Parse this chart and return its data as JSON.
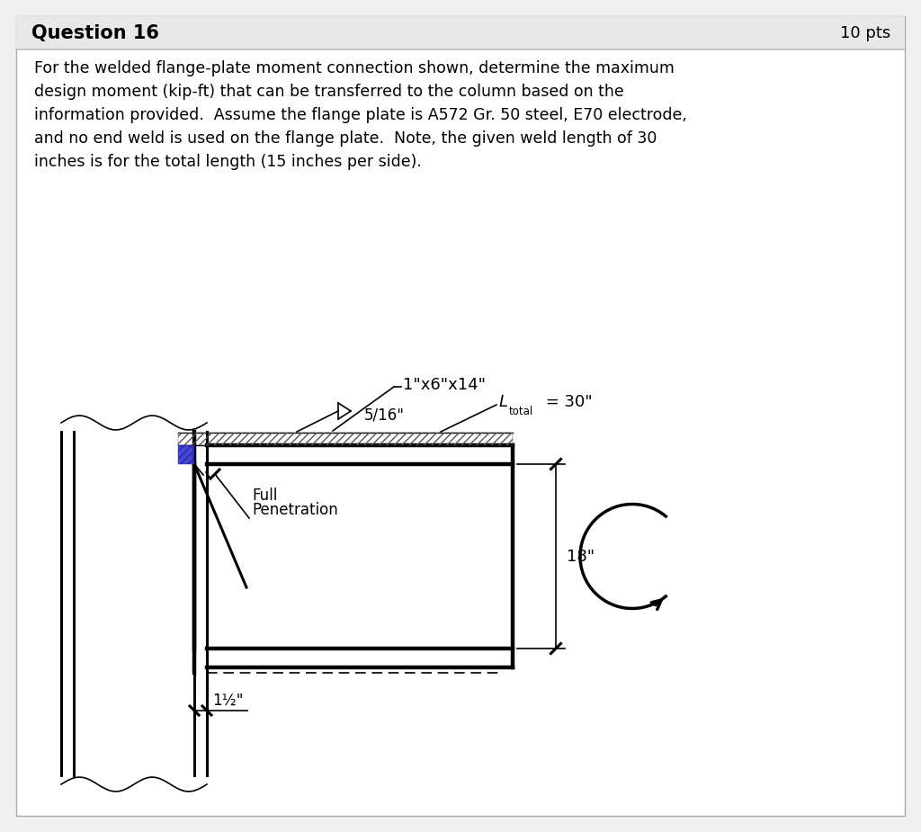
{
  "background_color": "#f0f0f0",
  "content_bg": "#ffffff",
  "header_bg": "#e8e8e8",
  "title": "Question 16",
  "pts": "10 pts",
  "paragraph": "For the welded flange-plate moment connection shown, determine the maximum\ndesign moment (kip-ft) that can be transferred to the column based on the\ninformation provided.  Assume the flange plate is A572 Gr. 50 steel, E70 electrode,\nand no end weld is used on the flange plate.  Note, the given weld length of 30\ninches is for the total length (15 inches per side).",
  "label_plate": "1\"x6\"x14\"",
  "label_weld_size": "5/16\"",
  "label_L": "L",
  "label_total": "total",
  "label_L_val": " = 30\"",
  "label_full_pen1": "Full",
  "label_full_pen2": "Penetration",
  "label_1half": "1½\"",
  "label_18": "18\"",
  "draw_color": "#000000",
  "hatch_color": "#555555",
  "blue_weld": "#3333cc"
}
